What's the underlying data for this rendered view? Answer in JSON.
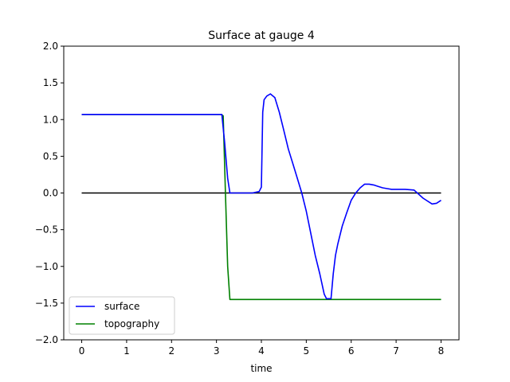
{
  "chart_data": {
    "type": "line",
    "title": "Surface at gauge 4",
    "xlabel": "time",
    "ylabel": "",
    "xlim": [
      -0.4,
      8.4
    ],
    "ylim": [
      -2.0,
      2.0
    ],
    "xticks": [
      0,
      1,
      2,
      3,
      4,
      5,
      6,
      7,
      8
    ],
    "yticks": [
      -2.0,
      -1.5,
      -1.0,
      -0.5,
      0.0,
      0.5,
      1.0,
      1.5,
      2.0
    ],
    "ytick_labels": [
      "−2.0",
      "−1.5",
      "−1.0",
      "−0.5",
      "0.0",
      "0.5",
      "1.0",
      "1.5",
      "2.0"
    ],
    "xtick_labels": [
      "0",
      "1",
      "2",
      "3",
      "4",
      "5",
      "6",
      "7",
      "8"
    ],
    "grid": false,
    "legend_position": "lower-left",
    "series": [
      {
        "name": "surface",
        "color": "#0000ff",
        "x": [
          0,
          1,
          2,
          3,
          3.12,
          3.18,
          3.25,
          3.3,
          3.5,
          3.8,
          3.95,
          4.0,
          4.03,
          4.06,
          4.12,
          4.2,
          4.3,
          4.4,
          4.5,
          4.6,
          4.7,
          4.8,
          4.9,
          5.0,
          5.1,
          5.2,
          5.3,
          5.4,
          5.45,
          5.5,
          5.55,
          5.6,
          5.65,
          5.7,
          5.8,
          5.9,
          6.0,
          6.1,
          6.2,
          6.3,
          6.4,
          6.5,
          6.6,
          6.7,
          6.8,
          6.9,
          7.0,
          7.2,
          7.4,
          7.6,
          7.8,
          7.9,
          8.0
        ],
        "y": [
          1.07,
          1.07,
          1.07,
          1.07,
          1.07,
          0.7,
          0.2,
          0.0,
          0.0,
          0.0,
          0.02,
          0.08,
          1.1,
          1.27,
          1.32,
          1.35,
          1.3,
          1.1,
          0.85,
          0.6,
          0.4,
          0.2,
          0.0,
          -0.25,
          -0.55,
          -0.85,
          -1.1,
          -1.38,
          -1.44,
          -1.44,
          -1.44,
          -1.1,
          -0.85,
          -0.7,
          -0.45,
          -0.27,
          -0.1,
          0.0,
          0.07,
          0.12,
          0.12,
          0.11,
          0.09,
          0.07,
          0.06,
          0.05,
          0.05,
          0.05,
          0.04,
          -0.07,
          -0.15,
          -0.14,
          -0.1
        ]
      },
      {
        "name": "topography",
        "color": "#008000",
        "x": [
          0,
          3.1,
          3.15,
          3.2,
          3.25,
          3.3,
          8.0
        ],
        "y": [
          1.07,
          1.07,
          1.05,
          0.0,
          -1.0,
          -1.45,
          -1.45
        ]
      },
      {
        "name": "",
        "color": "#000000",
        "x": [
          0,
          8
        ],
        "y": [
          0,
          0
        ]
      }
    ]
  }
}
